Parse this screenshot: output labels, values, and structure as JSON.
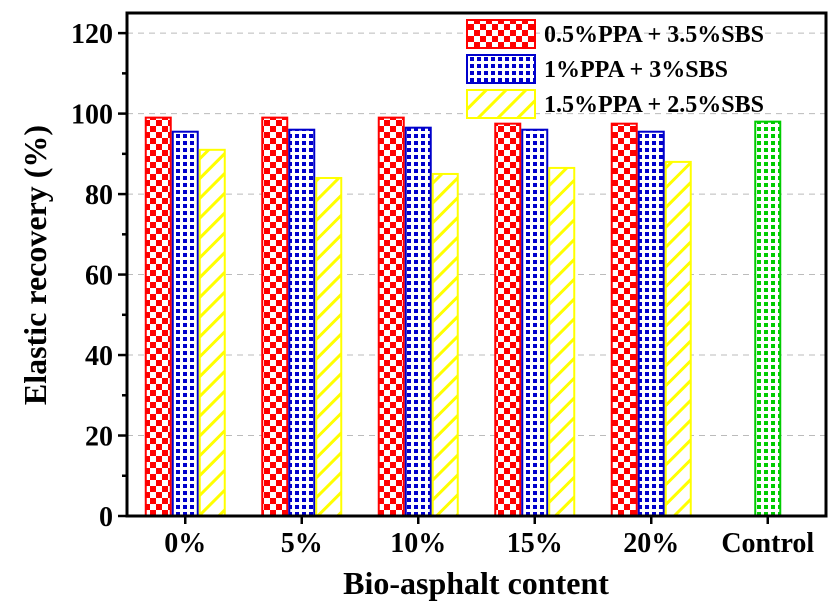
{
  "chart_data": {
    "type": "bar",
    "xlabel": "Bio-asphalt content",
    "ylabel": "Elastic recovery (%)",
    "ylim": [
      0,
      125
    ],
    "yticks": [
      0,
      20,
      40,
      60,
      80,
      100,
      120
    ],
    "categories": [
      "0%",
      "5%",
      "10%",
      "15%",
      "20%",
      "Control"
    ],
    "series": [
      {
        "name": "0.5%PPA + 3.5%SBS",
        "values": [
          99,
          99,
          99,
          97.5,
          97.5,
          null
        ]
      },
      {
        "name": "1%PPA + 3%SBS",
        "values": [
          95.5,
          96,
          96.5,
          96,
          95.5,
          null
        ]
      },
      {
        "name": "1.5%PPA + 2.5%SBS",
        "values": [
          91,
          84,
          85,
          86.5,
          88,
          null
        ]
      },
      {
        "name": "",
        "values": [
          null,
          null,
          null,
          null,
          null,
          98
        ]
      }
    ],
    "legend_position": "top-right",
    "grid": "horizontal dashed",
    "colors": {
      "checker_red": "#ff0000",
      "checker_blue": "#0000cc",
      "hatch_yellow": "#ffff00",
      "checker_green": "#00cc00"
    }
  }
}
